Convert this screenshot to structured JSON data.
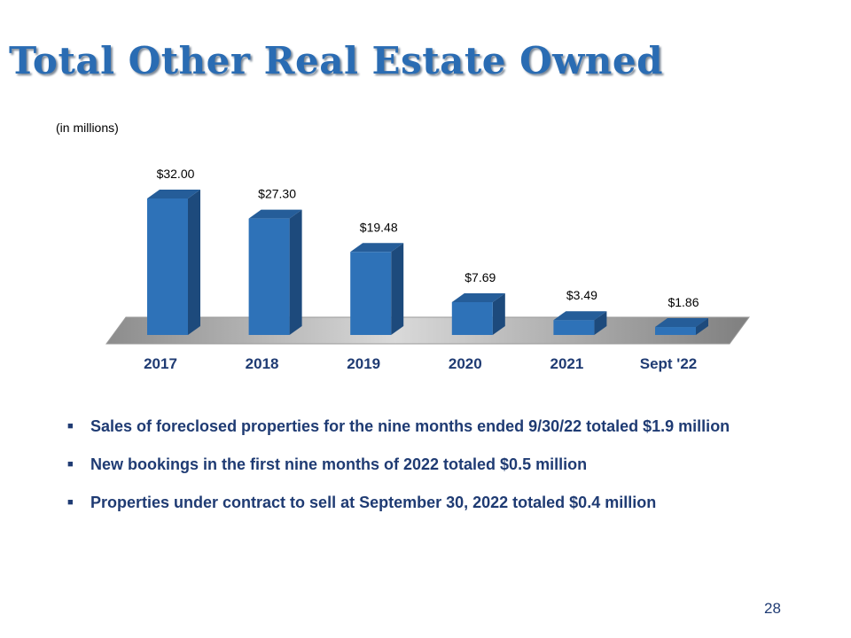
{
  "slide": {
    "title": "Total Other Real Estate Owned",
    "units_note": "(in millions)",
    "page_number": "28"
  },
  "chart_data": {
    "type": "bar",
    "categories": [
      "2017",
      "2018",
      "2019",
      "2020",
      "2021",
      "Sept '22"
    ],
    "values": [
      32.0,
      27.3,
      19.48,
      7.69,
      3.49,
      1.86
    ],
    "data_labels": [
      "$32.00",
      "$27.30",
      "$19.48",
      "$7.69",
      "$3.49",
      "$1.86"
    ],
    "ylim": [
      0,
      32
    ],
    "grid": false,
    "bar_style": "3d",
    "colors": {
      "bar_front": "#2e72b8",
      "bar_side": "#1d4a7c",
      "bar_top": "#255d99",
      "floor": "#a6a6a6",
      "category_label": "#1f3b73",
      "data_label": "#000000"
    }
  },
  "bullets": [
    "Sales of foreclosed properties for the nine months ended 9/30/22 totaled $1.9 million",
    "New bookings in the first nine months of 2022 totaled $0.5 million",
    "Properties under contract to sell at September 30, 2022 totaled $0.4 million"
  ]
}
